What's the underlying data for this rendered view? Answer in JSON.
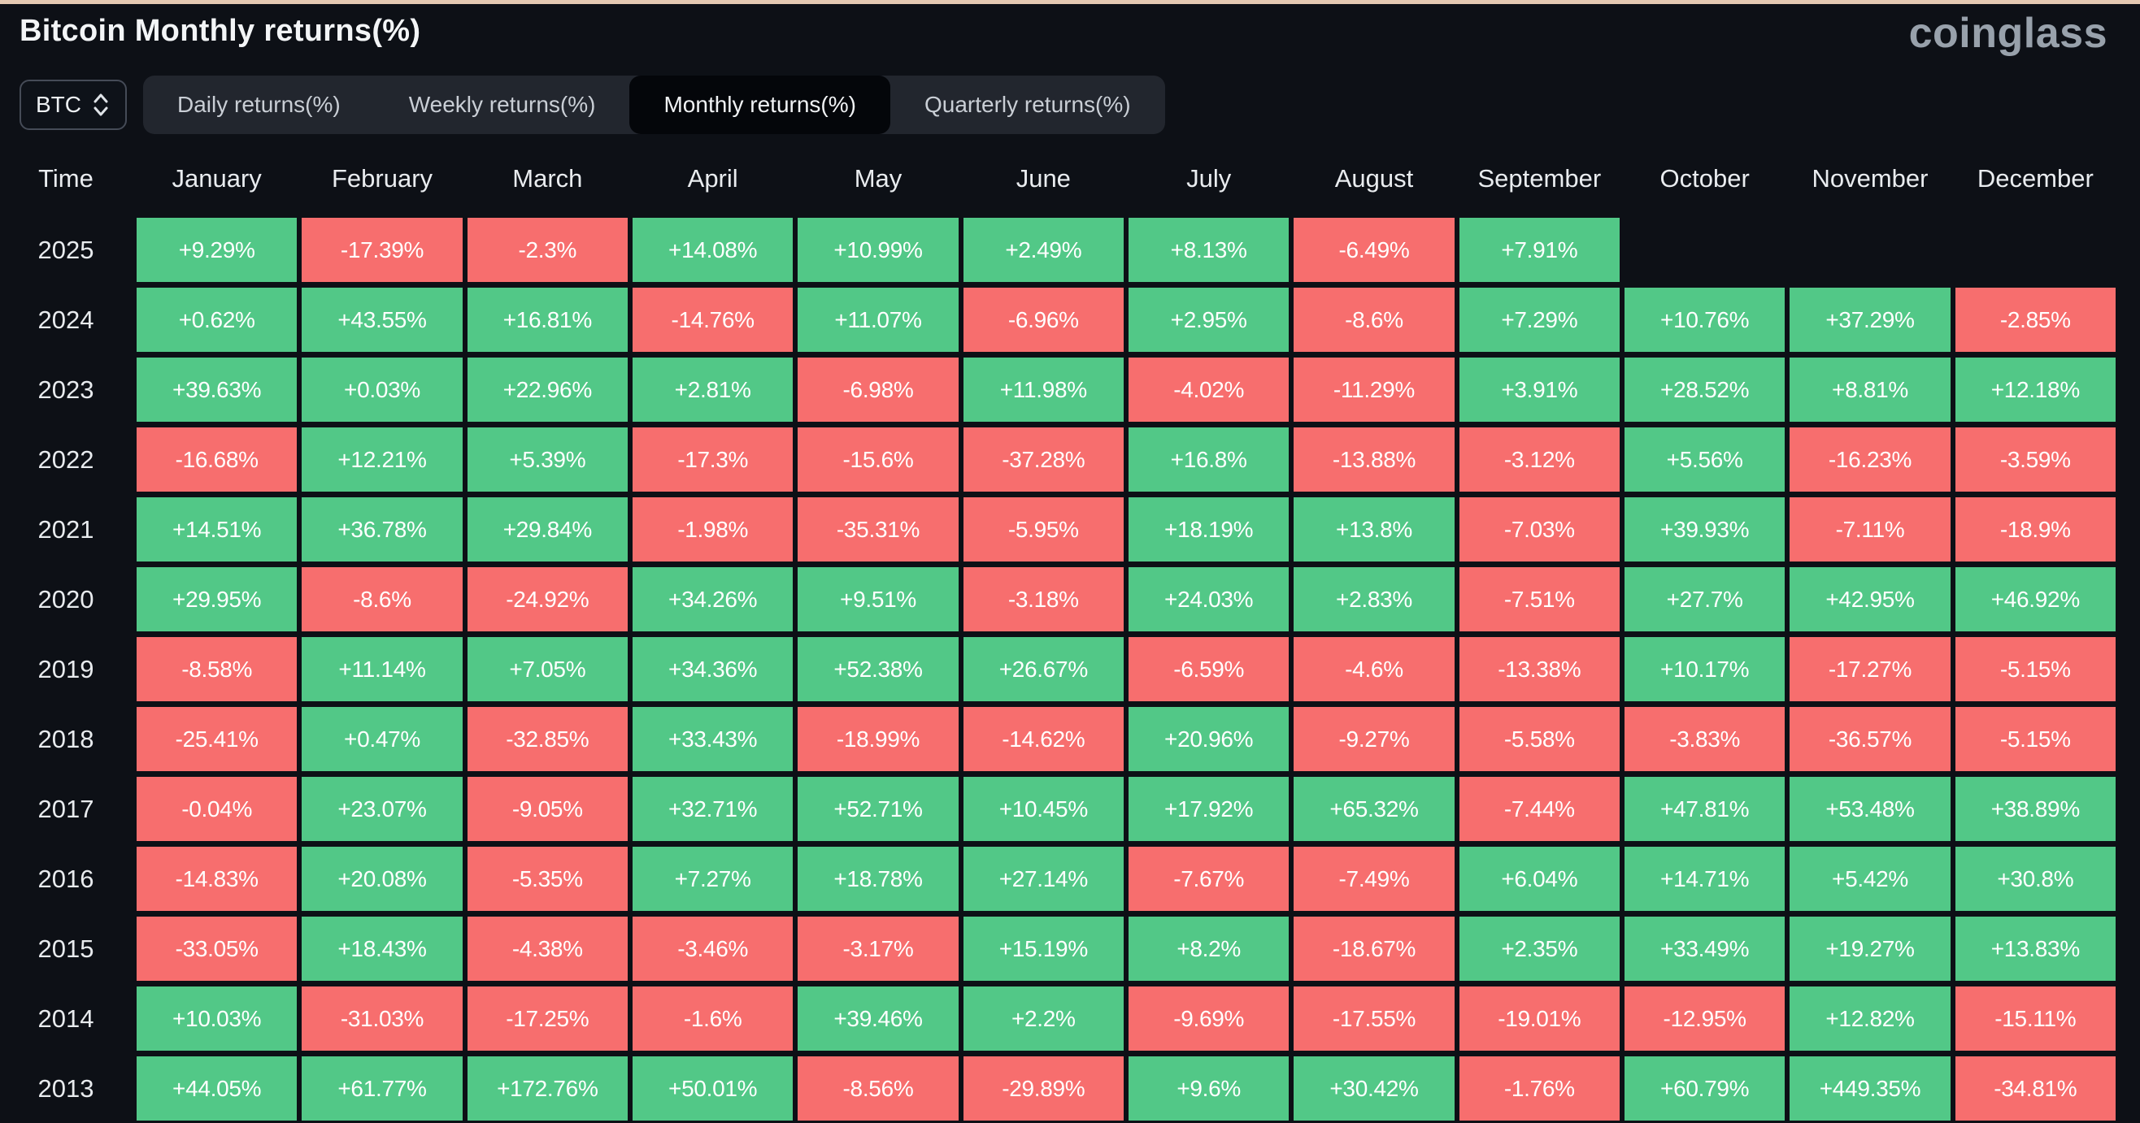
{
  "page": {
    "title": "Bitcoin Monthly returns(%)",
    "logo_text": "coinglass"
  },
  "symbol_select": {
    "value": "BTC"
  },
  "tabs": [
    {
      "label": "Daily returns(%)",
      "active": false
    },
    {
      "label": "Weekly returns(%)",
      "active": false
    },
    {
      "label": "Monthly returns(%)",
      "active": true
    },
    {
      "label": "Quarterly returns(%)",
      "active": false
    }
  ],
  "colors": {
    "positive": "#52c887",
    "negative": "#f76e6e",
    "background": "#0d1016",
    "tabbar": "#22262e",
    "active_tab": "#04060a",
    "top_accent": "#e4c9b2"
  },
  "chart_data": {
    "type": "table",
    "title": "Bitcoin Monthly returns(%)",
    "columns": [
      "Time",
      "January",
      "February",
      "March",
      "April",
      "May",
      "June",
      "July",
      "August",
      "September",
      "October",
      "November",
      "December"
    ],
    "rows": [
      {
        "year": "2025",
        "values": [
          "+9.29%",
          "-17.39%",
          "-2.3%",
          "+14.08%",
          "+10.99%",
          "+2.49%",
          "+8.13%",
          "-6.49%",
          "+7.91%",
          "",
          "",
          ""
        ]
      },
      {
        "year": "2024",
        "values": [
          "+0.62%",
          "+43.55%",
          "+16.81%",
          "-14.76%",
          "+11.07%",
          "-6.96%",
          "+2.95%",
          "-8.6%",
          "+7.29%",
          "+10.76%",
          "+37.29%",
          "-2.85%"
        ]
      },
      {
        "year": "2023",
        "values": [
          "+39.63%",
          "+0.03%",
          "+22.96%",
          "+2.81%",
          "-6.98%",
          "+11.98%",
          "-4.02%",
          "-11.29%",
          "+3.91%",
          "+28.52%",
          "+8.81%",
          "+12.18%"
        ]
      },
      {
        "year": "2022",
        "values": [
          "-16.68%",
          "+12.21%",
          "+5.39%",
          "-17.3%",
          "-15.6%",
          "-37.28%",
          "+16.8%",
          "-13.88%",
          "-3.12%",
          "+5.56%",
          "-16.23%",
          "-3.59%"
        ]
      },
      {
        "year": "2021",
        "values": [
          "+14.51%",
          "+36.78%",
          "+29.84%",
          "-1.98%",
          "-35.31%",
          "-5.95%",
          "+18.19%",
          "+13.8%",
          "-7.03%",
          "+39.93%",
          "-7.11%",
          "-18.9%"
        ]
      },
      {
        "year": "2020",
        "values": [
          "+29.95%",
          "-8.6%",
          "-24.92%",
          "+34.26%",
          "+9.51%",
          "-3.18%",
          "+24.03%",
          "+2.83%",
          "-7.51%",
          "+27.7%",
          "+42.95%",
          "+46.92%"
        ]
      },
      {
        "year": "2019",
        "values": [
          "-8.58%",
          "+11.14%",
          "+7.05%",
          "+34.36%",
          "+52.38%",
          "+26.67%",
          "-6.59%",
          "-4.6%",
          "-13.38%",
          "+10.17%",
          "-17.27%",
          "-5.15%"
        ]
      },
      {
        "year": "2018",
        "values": [
          "-25.41%",
          "+0.47%",
          "-32.85%",
          "+33.43%",
          "-18.99%",
          "-14.62%",
          "+20.96%",
          "-9.27%",
          "-5.58%",
          "-3.83%",
          "-36.57%",
          "-5.15%"
        ]
      },
      {
        "year": "2017",
        "values": [
          "-0.04%",
          "+23.07%",
          "-9.05%",
          "+32.71%",
          "+52.71%",
          "+10.45%",
          "+17.92%",
          "+65.32%",
          "-7.44%",
          "+47.81%",
          "+53.48%",
          "+38.89%"
        ]
      },
      {
        "year": "2016",
        "values": [
          "-14.83%",
          "+20.08%",
          "-5.35%",
          "+7.27%",
          "+18.78%",
          "+27.14%",
          "-7.67%",
          "-7.49%",
          "+6.04%",
          "+14.71%",
          "+5.42%",
          "+30.8%"
        ]
      },
      {
        "year": "2015",
        "values": [
          "-33.05%",
          "+18.43%",
          "-4.38%",
          "-3.46%",
          "-3.17%",
          "+15.19%",
          "+8.2%",
          "-18.67%",
          "+2.35%",
          "+33.49%",
          "+19.27%",
          "+13.83%"
        ]
      },
      {
        "year": "2014",
        "values": [
          "+10.03%",
          "-31.03%",
          "-17.25%",
          "-1.6%",
          "+39.46%",
          "+2.2%",
          "-9.69%",
          "-17.55%",
          "-19.01%",
          "-12.95%",
          "+12.82%",
          "-15.11%"
        ]
      },
      {
        "year": "2013",
        "values": [
          "+44.05%",
          "+61.77%",
          "+172.76%",
          "+50.01%",
          "-8.56%",
          "-29.89%",
          "+9.6%",
          "+30.42%",
          "-1.76%",
          "+60.79%",
          "+449.35%",
          "-34.81%"
        ]
      }
    ]
  }
}
